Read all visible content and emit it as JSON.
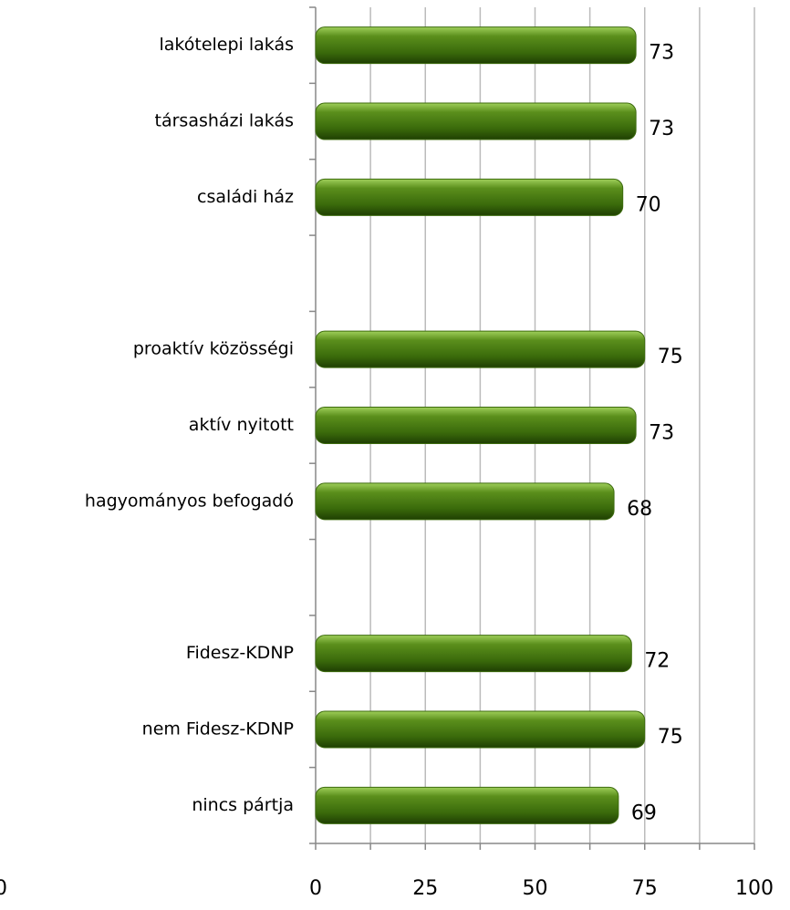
{
  "chart_data": {
    "type": "barh",
    "categories": [
      "lakótelepi lakás",
      "társasházi lakás",
      "családi ház",
      null,
      "proaktív közösségi",
      "aktív nyitott",
      "hagyományos befogadó",
      null,
      "Fidesz-KDNP",
      "nem Fidesz-KDNP",
      "nincs pártja"
    ],
    "values": [
      73,
      73,
      70,
      null,
      75,
      73,
      68,
      null,
      72,
      75,
      69
    ],
    "color": "#3d6b0e",
    "xlim": [
      0,
      100
    ],
    "xticks": [
      0,
      25,
      50,
      75,
      100
    ],
    "minor_xticks": [
      12.5,
      37.5,
      62.5,
      87.5
    ],
    "grid": true,
    "annotations": [
      "0"
    ]
  }
}
